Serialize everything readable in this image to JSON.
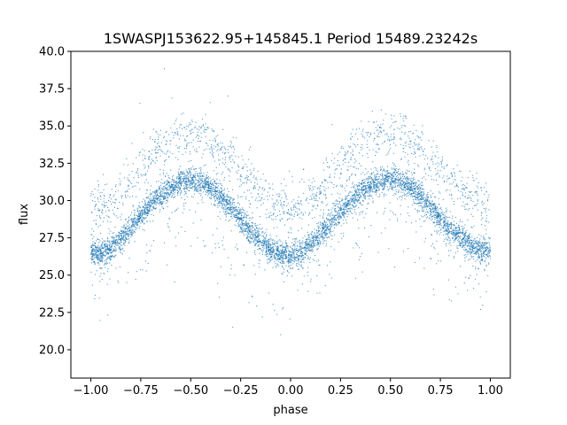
{
  "chart_data": {
    "type": "scatter",
    "title": "1SWASPJ153622.95+145845.1 Period 15489.23242s",
    "xlabel": "phase",
    "ylabel": "flux",
    "xlim": [
      -1.1,
      1.1
    ],
    "ylim": [
      18.1,
      40.0
    ],
    "x_ticks": [
      -1.0,
      -0.75,
      -0.5,
      -0.25,
      0.0,
      0.25,
      0.5,
      0.75,
      1.0
    ],
    "x_tick_labels": [
      "−1.00",
      "−0.75",
      "−0.50",
      "−0.25",
      "0.00",
      "0.25",
      "0.50",
      "0.75",
      "1.00"
    ],
    "y_ticks": [
      20.0,
      22.5,
      25.0,
      27.5,
      30.0,
      32.5,
      35.0,
      37.5,
      40.0
    ],
    "y_tick_labels": [
      "20.0",
      "22.5",
      "25.0",
      "27.5",
      "30.0",
      "32.5",
      "35.0",
      "37.5",
      "40.0"
    ],
    "grid": false,
    "legend": "none",
    "marker_color": "#1f77b4",
    "series": [
      {
        "trend": {
          "phase": [
            -1.0,
            -0.95,
            -0.9,
            -0.85,
            -0.8,
            -0.75,
            -0.7,
            -0.65,
            -0.6,
            -0.55,
            -0.5,
            -0.45,
            -0.4,
            -0.35,
            -0.3,
            -0.25,
            -0.2,
            -0.15,
            -0.1,
            -0.05,
            0.0,
            0.05,
            0.1,
            0.15,
            0.2,
            0.25,
            0.3,
            0.35,
            0.4,
            0.45,
            0.5,
            0.55,
            0.6,
            0.65,
            0.7,
            0.75,
            0.8,
            0.85,
            0.9,
            0.95,
            1.0
          ],
          "flux": [
            26.6,
            26.4,
            26.7,
            27.4,
            28.2,
            29.0,
            29.8,
            30.4,
            30.9,
            31.2,
            31.3,
            31.2,
            30.8,
            30.2,
            29.5,
            28.7,
            27.9,
            27.2,
            26.7,
            26.4,
            26.3,
            26.5,
            27.0,
            27.7,
            28.5,
            29.3,
            30.0,
            30.6,
            31.0,
            31.3,
            31.4,
            31.3,
            30.9,
            30.3,
            29.5,
            28.8,
            28.1,
            27.5,
            27.0,
            26.7,
            26.6
          ]
        }
      }
    ]
  }
}
